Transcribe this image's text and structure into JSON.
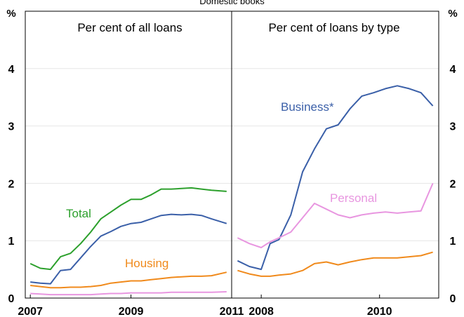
{
  "chart_data": {
    "type": "line",
    "title": "Domestic books",
    "y_unit_left": "%",
    "y_unit_right": "%",
    "ylim": [
      0,
      5
    ],
    "yticks": [
      0,
      1,
      2,
      3,
      4
    ],
    "grid": true,
    "panels": [
      {
        "title": "Per cent of all loans",
        "xlim": [
          2006.9,
          2011
        ],
        "xticks": [
          2007,
          2009,
          2011
        ],
        "series": [
          {
            "name": "Total",
            "color": "#2ca02c",
            "x": [
              2007.0,
              2007.2,
              2007.4,
              2007.6,
              2007.8,
              2008.0,
              2008.2,
              2008.4,
              2008.6,
              2008.8,
              2009.0,
              2009.2,
              2009.4,
              2009.6,
              2009.8,
              2010.0,
              2010.2,
              2010.4,
              2010.6,
              2010.9
            ],
            "y": [
              0.6,
              0.52,
              0.5,
              0.72,
              0.78,
              0.95,
              1.15,
              1.38,
              1.5,
              1.62,
              1.72,
              1.72,
              1.8,
              1.9,
              1.9,
              1.91,
              1.92,
              1.9,
              1.88,
              1.86
            ]
          },
          {
            "name": "",
            "color": "#3a5fa8",
            "x": [
              2007.0,
              2007.2,
              2007.4,
              2007.6,
              2007.8,
              2008.0,
              2008.2,
              2008.4,
              2008.6,
              2008.8,
              2009.0,
              2009.2,
              2009.4,
              2009.6,
              2009.8,
              2010.0,
              2010.2,
              2010.4,
              2010.6,
              2010.9
            ],
            "y": [
              0.28,
              0.26,
              0.25,
              0.48,
              0.5,
              0.7,
              0.9,
              1.08,
              1.16,
              1.25,
              1.3,
              1.32,
              1.38,
              1.44,
              1.46,
              1.45,
              1.46,
              1.44,
              1.38,
              1.3
            ]
          },
          {
            "name": "Housing",
            "color": "#f08a1c",
            "x": [
              2007.0,
              2007.2,
              2007.4,
              2007.6,
              2007.8,
              2008.0,
              2008.2,
              2008.4,
              2008.6,
              2008.8,
              2009.0,
              2009.2,
              2009.4,
              2009.6,
              2009.8,
              2010.0,
              2010.2,
              2010.4,
              2010.6,
              2010.9
            ],
            "y": [
              0.22,
              0.2,
              0.18,
              0.18,
              0.19,
              0.19,
              0.2,
              0.22,
              0.26,
              0.28,
              0.3,
              0.3,
              0.32,
              0.34,
              0.36,
              0.37,
              0.38,
              0.38,
              0.39,
              0.45
            ]
          },
          {
            "name": "",
            "color": "#e896e0",
            "x": [
              2007.0,
              2007.2,
              2007.4,
              2007.6,
              2007.8,
              2008.0,
              2008.2,
              2008.4,
              2008.6,
              2008.8,
              2009.0,
              2009.2,
              2009.4,
              2009.6,
              2009.8,
              2010.0,
              2010.2,
              2010.4,
              2010.6,
              2010.9
            ],
            "y": [
              0.08,
              0.07,
              0.06,
              0.06,
              0.06,
              0.06,
              0.06,
              0.07,
              0.08,
              0.08,
              0.09,
              0.09,
              0.09,
              0.09,
              0.1,
              0.1,
              0.1,
              0.1,
              0.1,
              0.11
            ]
          }
        ]
      },
      {
        "title": "Per cent of loans by type",
        "xlim": [
          2007.5,
          2011.0
        ],
        "xticks": [
          2008,
          2010
        ],
        "series": [
          {
            "name": "Business*",
            "color": "#3a5fa8",
            "x": [
              2007.6,
              2007.8,
              2008.0,
              2008.15,
              2008.3,
              2008.5,
              2008.7,
              2008.9,
              2009.1,
              2009.3,
              2009.5,
              2009.7,
              2009.9,
              2010.1,
              2010.3,
              2010.5,
              2010.7,
              2010.9
            ],
            "y": [
              0.65,
              0.55,
              0.5,
              0.95,
              1.02,
              1.45,
              2.2,
              2.6,
              2.95,
              3.02,
              3.3,
              3.52,
              3.58,
              3.65,
              3.7,
              3.65,
              3.58,
              3.35
            ]
          },
          {
            "name": "Personal",
            "color": "#e896e0",
            "x": [
              2007.6,
              2007.8,
              2008.0,
              2008.15,
              2008.3,
              2008.5,
              2008.7,
              2008.9,
              2009.1,
              2009.3,
              2009.5,
              2009.7,
              2009.9,
              2010.1,
              2010.3,
              2010.5,
              2010.7,
              2010.9
            ],
            "y": [
              1.05,
              0.95,
              0.88,
              0.98,
              1.05,
              1.15,
              1.4,
              1.65,
              1.55,
              1.45,
              1.4,
              1.45,
              1.48,
              1.5,
              1.48,
              1.5,
              1.52,
              2.0
            ]
          },
          {
            "name": "",
            "color": "#f08a1c",
            "x": [
              2007.6,
              2007.8,
              2008.0,
              2008.15,
              2008.3,
              2008.5,
              2008.7,
              2008.9,
              2009.1,
              2009.3,
              2009.5,
              2009.7,
              2009.9,
              2010.1,
              2010.3,
              2010.5,
              2010.7,
              2010.9
            ],
            "y": [
              0.48,
              0.42,
              0.38,
              0.38,
              0.4,
              0.42,
              0.48,
              0.6,
              0.63,
              0.58,
              0.63,
              0.67,
              0.7,
              0.7,
              0.7,
              0.72,
              0.74,
              0.8
            ]
          }
        ]
      }
    ]
  }
}
